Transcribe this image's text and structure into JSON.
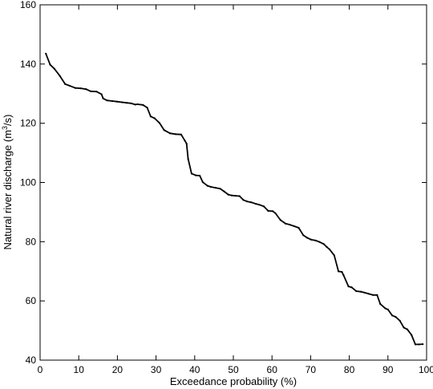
{
  "chart_data": {
    "type": "line",
    "xlabel": "Exceedance probability (%)",
    "ylabel_main": "Natural river discharge (m",
    "ylabel_sup": "3",
    "ylabel_tail": "/s)",
    "xlim": [
      0,
      100
    ],
    "ylim": [
      40,
      160
    ],
    "x_ticks": [
      0,
      10,
      20,
      30,
      40,
      50,
      60,
      70,
      80,
      90,
      100
    ],
    "y_ticks": [
      40,
      60,
      80,
      100,
      120,
      140,
      160
    ],
    "grid": false,
    "series": [
      {
        "x": [
          1.5,
          2.6,
          3.7,
          5.1,
          6.5,
          7.6,
          9.1,
          10.5,
          11.9,
          13.1,
          14.6,
          15.9,
          16.3,
          17.3,
          18.7,
          19.9,
          21.2,
          22.4,
          23.6,
          24.6,
          25.2,
          26.6,
          27.7,
          28.6,
          29.6,
          30.9,
          32.1,
          33.6,
          35.1,
          36.5,
          37.5,
          37.9,
          38.3,
          39.2,
          40.3,
          41.3,
          42.1,
          43.3,
          44.2,
          45.4,
          46.6,
          47.6,
          48.7,
          49.6,
          50.6,
          51.6,
          52.6,
          53.5,
          54.6,
          55.8,
          56.7,
          57.9,
          59.0,
          60.2,
          60.9,
          62.2,
          63.5,
          64.7,
          65.8,
          66.9,
          68.1,
          69.1,
          70.1,
          71.3,
          72.3,
          73.4,
          74.2,
          74.9,
          76.1,
          77.2,
          78.1,
          78.5,
          79.8,
          80.6,
          81.8,
          83.0,
          83.9,
          85.0,
          86.1,
          87.2,
          88.0,
          89.3,
          90.0,
          91.1,
          92.0,
          93.1,
          94.1,
          95.0,
          96.1,
          97.1,
          98.0,
          99.0
        ],
        "y": [
          143.5,
          139.8,
          138.4,
          136.0,
          133.2,
          132.7,
          131.9,
          131.8,
          131.5,
          130.8,
          130.7,
          129.8,
          128.4,
          127.7,
          127.5,
          127.3,
          127.1,
          126.9,
          126.7,
          126.3,
          126.4,
          126.2,
          125.3,
          122.3,
          121.7,
          120.1,
          117.7,
          116.6,
          116.3,
          116.2,
          114.0,
          113.1,
          108.0,
          103.0,
          102.4,
          102.3,
          100.1,
          98.9,
          98.5,
          98.2,
          97.9,
          97.0,
          95.9,
          95.6,
          95.5,
          95.4,
          94.1,
          93.6,
          93.3,
          92.8,
          92.5,
          91.9,
          90.4,
          90.3,
          89.6,
          87.3,
          86.1,
          85.7,
          85.2,
          84.7,
          82.2,
          81.3,
          80.7,
          80.4,
          79.9,
          79.2,
          78.2,
          77.4,
          75.4,
          70.0,
          69.8,
          68.7,
          64.9,
          64.6,
          63.3,
          63.1,
          62.8,
          62.4,
          62.0,
          62.0,
          59.0,
          57.5,
          57.1,
          55.1,
          54.6,
          53.3,
          51.0,
          50.4,
          48.5,
          45.3,
          45.3,
          45.4
        ]
      }
    ]
  }
}
